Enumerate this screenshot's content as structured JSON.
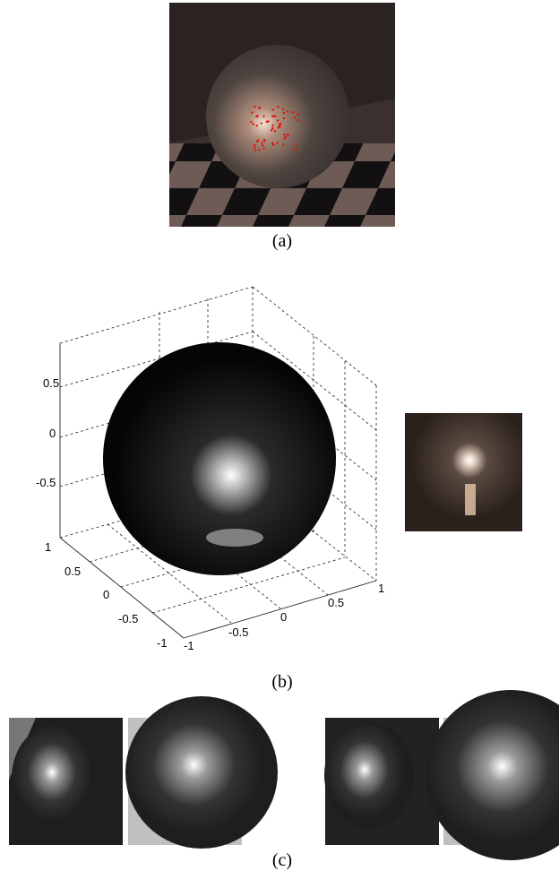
{
  "figure": {
    "panel_a": {
      "caption": "(a)"
    },
    "panel_b": {
      "caption": "(b)",
      "z_ticks": [
        "0.5",
        "0",
        "-0.5"
      ],
      "x_ticks": [
        "1",
        "0.5",
        "0",
        "-0.5",
        "-1"
      ],
      "y_ticks": [
        "-1",
        "-0.5",
        "0",
        "0.5",
        "1"
      ]
    },
    "panel_c": {
      "caption": "(c)"
    }
  }
}
